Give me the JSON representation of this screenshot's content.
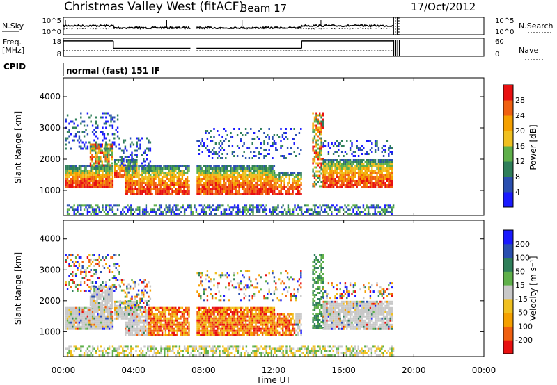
{
  "header": {
    "station": "Christmas Valley West (fitACF)",
    "beam": "Beam 17",
    "date": "17/Oct/2012"
  },
  "left_labels": {
    "nsky": "N.Sky",
    "freq_line1": "Freq.",
    "freq_line2": "[MHz]",
    "cpid": "CPID"
  },
  "right_labels": {
    "nsearch": "N.Search",
    "nave": "Nave"
  },
  "cpid_text": "normal (fast) 151 IF",
  "time_axis": {
    "label": "Time UT",
    "ticks": [
      "00:00",
      "04:00",
      "08:00",
      "12:00",
      "16:00",
      "20:00",
      "00:00"
    ]
  },
  "colors": {
    "power": [
      "#1a1aff",
      "#2a4fb0",
      "#2f7f5a",
      "#5fb04a",
      "#f0c020",
      "#f5a000",
      "#f06010",
      "#e81010"
    ],
    "velocity": [
      "#e81010",
      "#f06010",
      "#f5a000",
      "#f0c020",
      "#c8c8c8",
      "#5fb04a",
      "#2f7f5a",
      "#2a4fb0",
      "#1a1aff"
    ]
  },
  "chart_data": [
    {
      "type": "line",
      "name_key": "noise",
      "left_axis": {
        "label": "N.Sky",
        "ticks": [
          "10^5",
          "10^0"
        ]
      },
      "right_axis": {
        "label": "N.Search",
        "ticks": [
          "10^5",
          "10^0"
        ]
      },
      "x_range_hours": [
        0,
        24
      ],
      "segments_hours": [
        [
          0,
          7.25
        ],
        [
          7.6,
          18.85
        ]
      ]
    },
    {
      "type": "line",
      "name_key": "frequency",
      "left_axis": {
        "label": "Freq. [MHz]",
        "ticks": [
          "18",
          "8"
        ],
        "range": [
          8,
          18
        ]
      },
      "right_axis": {
        "label": "Nave",
        "ticks": [
          "60",
          "0"
        ],
        "range": [
          0,
          60
        ]
      },
      "freq_steps": [
        {
          "x": [
            0,
            2.85
          ],
          "y": 16.5
        },
        {
          "x": [
            2.85,
            7.25
          ],
          "y": 12.4
        },
        {
          "x": [
            7.6,
            13.6
          ],
          "y": 12.4
        },
        {
          "x": [
            13.6,
            18.85
          ],
          "y": 16.5
        }
      ]
    },
    {
      "type": "heatmap",
      "name_key": "power",
      "ylabel": "Slant Range [km]",
      "yticks": [
        1000,
        2000,
        3000,
        4000
      ],
      "ylim": [
        200,
        4600
      ],
      "colorbar": {
        "label": "Power [dB]",
        "ticks": [
          "4",
          "8",
          "12",
          "16",
          "20",
          "24",
          "28"
        ]
      }
    },
    {
      "type": "heatmap",
      "name_key": "velocity",
      "ylabel": "Slant Range [km]",
      "yticks": [
        1000,
        2000,
        3000,
        4000
      ],
      "ylim": [
        200,
        4600
      ],
      "colorbar": {
        "label": "Velocity [m s⁻¹]",
        "ticks": [
          "-200",
          "-100",
          "-50",
          "-15",
          "15",
          "50",
          "100",
          "200"
        ]
      }
    }
  ]
}
